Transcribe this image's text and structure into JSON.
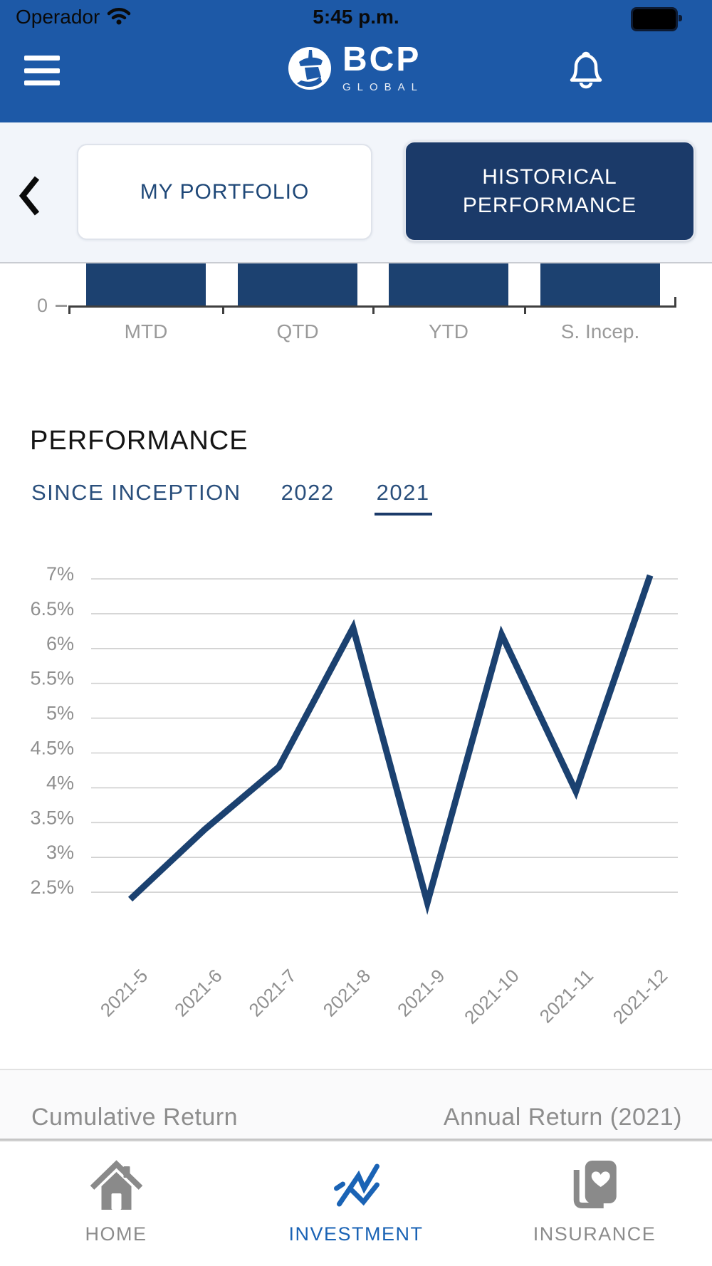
{
  "status_bar": {
    "carrier": "Operador",
    "time": "5:45 p.m."
  },
  "header": {
    "brand": "BCP",
    "brand_sub": "GLOBAL"
  },
  "portfolio_tabs": {
    "my_portfolio": "MY PORTFOLIO",
    "historical_performance": "HISTORICAL PERFORMANCE",
    "active": "HISTORICAL PERFORMANCE"
  },
  "performance": {
    "title": "PERFORMANCE",
    "range_tabs": [
      "SINCE INCEPTION",
      "2022",
      "2021"
    ],
    "active_tab": "2021"
  },
  "chart_data": [
    {
      "type": "bar",
      "categories": [
        "MTD",
        "QTD",
        "YTD",
        "S. Incep."
      ],
      "values": null,
      "values_clipped": true,
      "axis_zero_label": "0",
      "bar_color": "#1C4170"
    },
    {
      "type": "line",
      "x": [
        "2021-5",
        "2021-6",
        "2021-7",
        "2021-8",
        "2021-9",
        "2021-10",
        "2021-11",
        "2021-12"
      ],
      "y": [
        2.4,
        3.4,
        4.3,
        6.3,
        2.35,
        6.2,
        3.95,
        7.05
      ],
      "unit": "%",
      "y_tick_labels": [
        "7%",
        "6.5%",
        "6%",
        "5.5%",
        "5%",
        "4.5%",
        "4%",
        "3.5%",
        "3%",
        "2.5%"
      ],
      "y_tick_values": [
        7,
        6.5,
        6,
        5.5,
        5,
        4.5,
        4,
        3.5,
        3,
        2.5
      ],
      "ylim": [
        2.2,
        7.15
      ],
      "grid": true,
      "legend": null,
      "line_color": "#1B4170"
    }
  ],
  "returns_header": {
    "left": "Cumulative Return",
    "right": "Annual Return (2021)"
  },
  "bottom_nav": {
    "items": [
      {
        "label": "HOME",
        "active": false
      },
      {
        "label": "INVESTMENT",
        "active": true
      },
      {
        "label": "INSURANCE",
        "active": false
      }
    ]
  },
  "colors": {
    "header_blue": "#1D59A7",
    "navy": "#1B3A69",
    "chart_navy": "#1C4170",
    "accent_blue": "#1A63B5",
    "muted_gray": "#9A9A9A"
  }
}
